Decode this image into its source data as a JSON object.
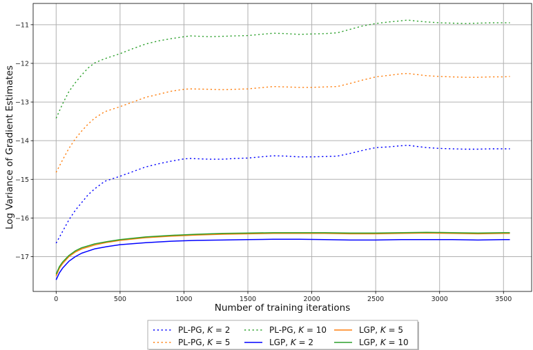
{
  "chart_data": {
    "type": "line",
    "title": "",
    "xlabel": "Number of training iterations",
    "ylabel": "Log Variance of Gradient Estimates",
    "xlim": [
      -180,
      3720
    ],
    "ylim": [
      -17.9,
      -10.45
    ],
    "x_ticks": [
      0,
      500,
      1000,
      1500,
      2000,
      2500,
      3000,
      3500
    ],
    "x_tick_labels": [
      "0",
      "500",
      "1000",
      "1500",
      "2000",
      "2500",
      "3000",
      "3500"
    ],
    "y_ticks": [
      -17,
      -16,
      -15,
      -14,
      -13,
      -12,
      -11
    ],
    "y_tick_labels": [
      "−17",
      "−16",
      "−15",
      "−14",
      "−13",
      "−12",
      "−11"
    ],
    "grid": true,
    "legend_position": "bottom-center, outside the axes",
    "series": [
      {
        "name": "PL-PG, K = 2",
        "name_prefix": "PL-PG, ",
        "k_value": "2",
        "color": "#0000ff",
        "style": "dotted",
        "x": [
          0,
          50,
          100,
          150,
          200,
          250,
          300,
          380,
          500,
          600,
          700,
          800,
          900,
          1000,
          1050,
          1200,
          1300,
          1400,
          1500,
          1600,
          1700,
          1800,
          1900,
          2000,
          2100,
          2200,
          2300,
          2400,
          2500,
          2600,
          2700,
          2750,
          2800,
          2900,
          3000,
          3100,
          3200,
          3300,
          3400,
          3500,
          3550
        ],
        "y": [
          -16.65,
          -16.35,
          -16.05,
          -15.8,
          -15.6,
          -15.4,
          -15.25,
          -15.05,
          -14.92,
          -14.8,
          -14.68,
          -14.6,
          -14.53,
          -14.47,
          -14.46,
          -14.48,
          -14.48,
          -14.46,
          -14.45,
          -14.42,
          -14.39,
          -14.4,
          -14.42,
          -14.42,
          -14.41,
          -14.4,
          -14.33,
          -14.25,
          -14.18,
          -14.16,
          -14.13,
          -14.12,
          -14.14,
          -14.18,
          -14.2,
          -14.21,
          -14.22,
          -14.22,
          -14.21,
          -14.21,
          -14.21
        ]
      },
      {
        "name": "LGP, K = 2",
        "name_prefix": "LGP, ",
        "k_value": "2",
        "color": "#0000ff",
        "style": "solid",
        "x": [
          0,
          25,
          50,
          100,
          150,
          200,
          300,
          400,
          500,
          700,
          900,
          1100,
          1300,
          1500,
          1700,
          1900,
          2100,
          2300,
          2500,
          2700,
          2900,
          3100,
          3300,
          3500,
          3550
        ],
        "y": [
          -17.6,
          -17.42,
          -17.3,
          -17.12,
          -17.0,
          -16.91,
          -16.8,
          -16.74,
          -16.69,
          -16.64,
          -16.6,
          -16.58,
          -16.57,
          -16.56,
          -16.55,
          -16.55,
          -16.56,
          -16.57,
          -16.57,
          -16.56,
          -16.56,
          -16.56,
          -16.57,
          -16.56,
          -16.56
        ]
      },
      {
        "name": "PL-PG, K = 5",
        "name_prefix": "PL-PG, ",
        "k_value": "5",
        "color": "#ff7f0e",
        "style": "dotted",
        "x": [
          0,
          50,
          100,
          150,
          200,
          250,
          300,
          380,
          500,
          600,
          700,
          800,
          900,
          1000,
          1050,
          1200,
          1300,
          1400,
          1500,
          1600,
          1700,
          1800,
          1900,
          2000,
          2100,
          2200,
          2300,
          2400,
          2500,
          2600,
          2700,
          2750,
          2800,
          2900,
          3000,
          3100,
          3200,
          3300,
          3400,
          3500,
          3550
        ],
        "y": [
          -14.82,
          -14.5,
          -14.2,
          -13.95,
          -13.75,
          -13.57,
          -13.42,
          -13.25,
          -13.12,
          -13.0,
          -12.88,
          -12.8,
          -12.72,
          -12.67,
          -12.66,
          -12.67,
          -12.68,
          -12.67,
          -12.66,
          -12.63,
          -12.6,
          -12.61,
          -12.62,
          -12.62,
          -12.61,
          -12.6,
          -12.52,
          -12.43,
          -12.35,
          -12.31,
          -12.27,
          -12.26,
          -12.28,
          -12.32,
          -12.34,
          -12.35,
          -12.36,
          -12.36,
          -12.35,
          -12.35,
          -12.34
        ]
      },
      {
        "name": "LGP, K = 5",
        "name_prefix": "LGP, ",
        "k_value": "5",
        "color": "#ff7f0e",
        "style": "solid",
        "x": [
          0,
          25,
          50,
          100,
          150,
          200,
          300,
          400,
          500,
          700,
          900,
          1100,
          1300,
          1500,
          1700,
          1900,
          2100,
          2300,
          2500,
          2700,
          2900,
          3100,
          3300,
          3500,
          3550
        ],
        "y": [
          -17.5,
          -17.3,
          -17.18,
          -17.0,
          -16.88,
          -16.8,
          -16.7,
          -16.63,
          -16.58,
          -16.51,
          -16.47,
          -16.44,
          -16.42,
          -16.41,
          -16.4,
          -16.4,
          -16.4,
          -16.41,
          -16.41,
          -16.4,
          -16.39,
          -16.4,
          -16.41,
          -16.4,
          -16.4
        ]
      },
      {
        "name": "PL-PG, K = 10",
        "name_prefix": "PL-PG, ",
        "k_value": "10",
        "color": "#2ca02c",
        "style": "dotted",
        "x": [
          0,
          50,
          100,
          150,
          200,
          250,
          300,
          380,
          500,
          600,
          700,
          800,
          900,
          1000,
          1050,
          1200,
          1300,
          1400,
          1500,
          1600,
          1700,
          1800,
          1900,
          2000,
          2100,
          2200,
          2300,
          2400,
          2500,
          2600,
          2700,
          2750,
          2800,
          2900,
          3000,
          3100,
          3200,
          3300,
          3400,
          3500,
          3550
        ],
        "y": [
          -13.42,
          -13.05,
          -12.73,
          -12.5,
          -12.3,
          -12.12,
          -11.99,
          -11.88,
          -11.75,
          -11.62,
          -11.5,
          -11.42,
          -11.36,
          -11.31,
          -11.29,
          -11.31,
          -11.3,
          -11.29,
          -11.28,
          -11.25,
          -11.22,
          -11.23,
          -11.25,
          -11.24,
          -11.23,
          -11.21,
          -11.12,
          -11.03,
          -10.97,
          -10.93,
          -10.9,
          -10.88,
          -10.9,
          -10.93,
          -10.95,
          -10.96,
          -10.97,
          -10.96,
          -10.95,
          -10.95,
          -10.95
        ]
      },
      {
        "name": "LGP, K = 10",
        "name_prefix": "LGP, ",
        "k_value": "10",
        "color": "#2ca02c",
        "style": "solid",
        "x": [
          0,
          25,
          50,
          100,
          150,
          200,
          300,
          400,
          500,
          700,
          900,
          1100,
          1300,
          1500,
          1700,
          1900,
          2100,
          2300,
          2500,
          2700,
          2900,
          3100,
          3300,
          3500,
          3550
        ],
        "y": [
          -17.45,
          -17.26,
          -17.14,
          -16.97,
          -16.85,
          -16.77,
          -16.67,
          -16.61,
          -16.56,
          -16.49,
          -16.45,
          -16.42,
          -16.4,
          -16.39,
          -16.38,
          -16.38,
          -16.38,
          -16.39,
          -16.39,
          -16.38,
          -16.37,
          -16.38,
          -16.39,
          -16.38,
          -16.38
        ]
      }
    ],
    "legend_order": [
      0,
      2,
      4,
      1,
      3,
      5
    ]
  }
}
